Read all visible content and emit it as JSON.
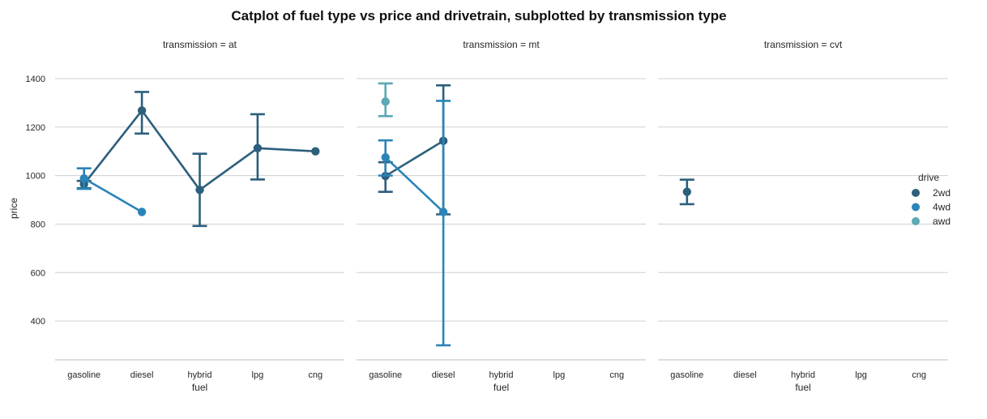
{
  "chart_data": {
    "type": "pointplot",
    "title": "Catplot of fuel type vs price and drivetrain, subplotted by transmission type",
    "xlabel": "fuel",
    "ylabel": "price",
    "categories": [
      "gasoline",
      "diesel",
      "hybrid",
      "lpg",
      "cng"
    ],
    "yticks": [
      400,
      600,
      800,
      1000,
      1200,
      1400
    ],
    "ylim": [
      240,
      1470
    ],
    "grid": "horizontal",
    "legend": {
      "title": "drive",
      "placement": "right",
      "entries": [
        {
          "name": "2wd",
          "color": "#2c5f7c"
        },
        {
          "name": "4wd",
          "color": "#2a84b8"
        },
        {
          "name": "awd",
          "color": "#5aa9b4"
        }
      ]
    },
    "facets": [
      {
        "title": "transmission = at",
        "series": [
          {
            "name": "2wd",
            "color": "#2c5f7c",
            "points": [
              {
                "x": "gasoline",
                "y": 965,
                "lo": 948,
                "hi": 978
              },
              {
                "x": "diesel",
                "y": 1268,
                "lo": 1173,
                "hi": 1345
              },
              {
                "x": "hybrid",
                "y": 941,
                "lo": 792,
                "hi": 1090
              },
              {
                "x": "lpg",
                "y": 1113,
                "lo": 984,
                "hi": 1253
              },
              {
                "x": "cng",
                "y": 1100,
                "lo": null,
                "hi": null
              }
            ]
          },
          {
            "name": "4wd",
            "color": "#2a84b8",
            "points": [
              {
                "x": "gasoline",
                "y": 988,
                "lo": 945,
                "hi": 1030
              },
              {
                "x": "diesel",
                "y": 850,
                "lo": null,
                "hi": null
              }
            ]
          }
        ]
      },
      {
        "title": "transmission = mt",
        "series": [
          {
            "name": "2wd",
            "color": "#2c5f7c",
            "points": [
              {
                "x": "gasoline",
                "y": 998,
                "lo": 933,
                "hi": 1055
              },
              {
                "x": "diesel",
                "y": 1143,
                "lo": 840,
                "hi": 1372
              }
            ]
          },
          {
            "name": "4wd",
            "color": "#2a84b8",
            "points": [
              {
                "x": "gasoline",
                "y": 1075,
                "lo": 1000,
                "hi": 1145
              },
              {
                "x": "diesel",
                "y": 850,
                "lo": 300,
                "hi": 1308
              }
            ]
          },
          {
            "name": "awd",
            "color": "#5aa9b4",
            "points": [
              {
                "x": "gasoline",
                "y": 1305,
                "lo": 1245,
                "hi": 1380
              }
            ]
          }
        ]
      },
      {
        "title": "transmission = cvt",
        "series": [
          {
            "name": "2wd",
            "color": "#2c5f7c",
            "points": [
              {
                "x": "gasoline",
                "y": 933,
                "lo": 882,
                "hi": 983
              }
            ]
          }
        ]
      }
    ]
  }
}
